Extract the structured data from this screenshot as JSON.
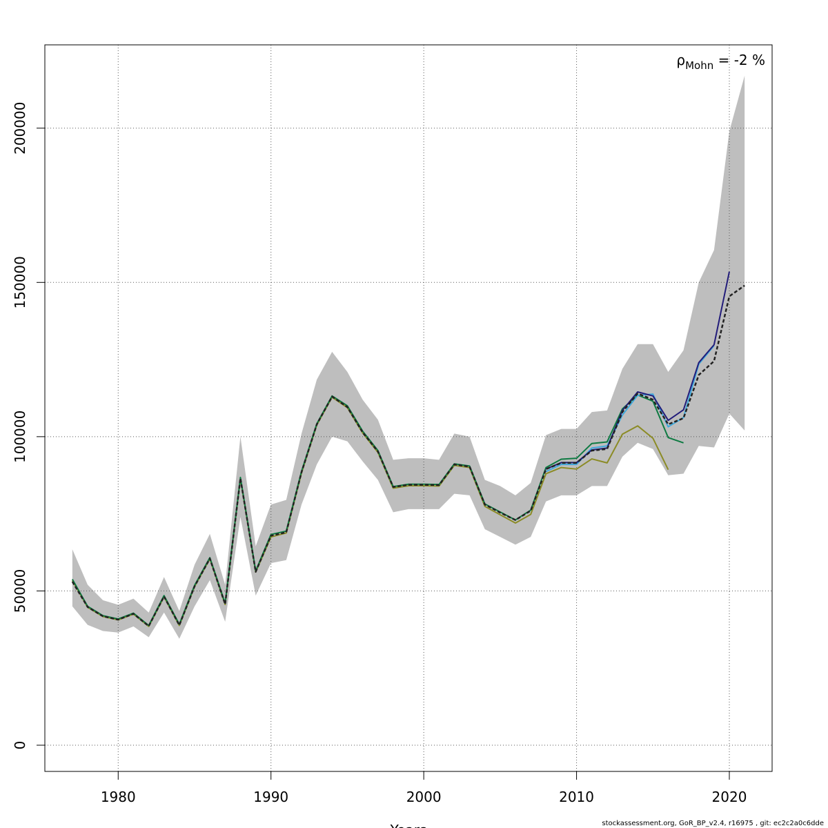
{
  "chart_data": {
    "type": "line",
    "title": "",
    "xlabel": "Years",
    "ylabel": "",
    "xlim": [
      1975.2,
      2022.8
    ],
    "ylim": [
      -8500,
      227000
    ],
    "xticks": [
      1980,
      1990,
      2000,
      2010,
      2020
    ],
    "yticks": [
      0,
      50000,
      100000,
      150000,
      200000
    ],
    "grid": true,
    "annotation": {
      "symbol": "ρ",
      "subscript": "Mohn",
      "text": " = -2 %"
    },
    "colors": {
      "band": "#bebebe",
      "grid": "#555555",
      "base": "#222222",
      "peel1": "#221c7a",
      "peel2": "#3fa9dc",
      "peel3": "#0e7a42",
      "peel4": "#8b8b25",
      "peel5": "#1a6b2a"
    },
    "band": {
      "x": [
        1977,
        1978,
        1979,
        1980,
        1981,
        1982,
        1983,
        1984,
        1985,
        1986,
        1987,
        1988,
        1989,
        1990,
        1991,
        1992,
        1993,
        1994,
        1995,
        1996,
        1997,
        1998,
        1999,
        2000,
        2001,
        2002,
        2003,
        2004,
        2005,
        2006,
        2007,
        2008,
        2009,
        2010,
        2011,
        2012,
        2013,
        2014,
        2015,
        2016,
        2017,
        2018,
        2019,
        2020,
        2021
      ],
      "lower": [
        45000,
        39000,
        37000,
        36500,
        38500,
        35000,
        43000,
        34500,
        45000,
        53500,
        40000,
        74000,
        48500,
        59000,
        60000,
        78000,
        91000,
        100000,
        98500,
        92000,
        86000,
        75500,
        76500,
        76500,
        76500,
        81500,
        81000,
        70000,
        67500,
        65000,
        67500,
        79000,
        81000,
        81000,
        84000,
        84000,
        93500,
        98000,
        96000,
        87500,
        88000,
        97000,
        96500,
        107500,
        102000
      ],
      "upper": [
        63500,
        52000,
        47000,
        45500,
        47500,
        43000,
        54500,
        43500,
        58500,
        68500,
        52000,
        100000,
        64500,
        78000,
        79500,
        101000,
        118500,
        127500,
        121000,
        112000,
        105500,
        92500,
        93000,
        93000,
        92500,
        101000,
        100000,
        86000,
        84000,
        81000,
        85000,
        100500,
        102500,
        102500,
        108000,
        108500,
        122000,
        130000,
        130000,
        121000,
        128000,
        150000,
        160500,
        199000,
        217000
      ]
    },
    "series": [
      {
        "name": "",
        "style": "dashed",
        "x": [
          1977,
          1978,
          1979,
          1980,
          1981,
          1982,
          1983,
          1984,
          1985,
          1986,
          1987,
          1988,
          1989,
          1990,
          1991,
          1992,
          1993,
          1994,
          1995,
          1996,
          1997,
          1998,
          1999,
          2000,
          2001,
          2002,
          2003,
          2004,
          2005,
          2006,
          2007,
          2008,
          2009,
          2010,
          2011,
          2012,
          2013,
          2014,
          2015,
          2016,
          2017,
          2018,
          2019,
          2020,
          2021
        ],
        "values": [
          53000,
          44800,
          41800,
          40700,
          42600,
          38600,
          48200,
          38900,
          51500,
          60500,
          45700,
          86500,
          56200,
          67900,
          69000,
          88500,
          104000,
          113000,
          109600,
          101400,
          95200,
          83700,
          84400,
          84400,
          84300,
          91000,
          90300,
          78000,
          75400,
          73000,
          76000,
          89500,
          91500,
          91500,
          95500,
          96000,
          108000,
          114000,
          112000,
          104000,
          106000,
          120000,
          124500,
          145500,
          149000
        ]
      },
      {
        "name": "",
        "style": "solid",
        "x": [
          2008,
          2009,
          2010,
          2011,
          2012,
          2013,
          2014,
          2015,
          2016,
          2017,
          2018,
          2019,
          2020
        ],
        "values": [
          89500,
          91600,
          91600,
          95700,
          96300,
          108500,
          114500,
          113200,
          105300,
          108700,
          124000,
          129800,
          153500
        ]
      },
      {
        "name": "",
        "style": "solid",
        "x": [
          2008,
          2009,
          2010,
          2011,
          2012,
          2013,
          2014,
          2015,
          2016,
          2017,
          2018,
          2019
        ],
        "values": [
          88700,
          91000,
          91000,
          96300,
          97000,
          107000,
          113400,
          113800,
          103200,
          106200,
          123500,
          129500
        ]
      },
      {
        "name": "",
        "style": "solid",
        "x": [
          1977,
          1978,
          1979,
          1980,
          1981,
          1982,
          1983,
          1984,
          1985,
          1986,
          1987,
          1988,
          1989,
          1990,
          1991,
          1992,
          1993,
          1994,
          1995,
          1996,
          1997,
          1998,
          1999,
          2000,
          2001,
          2002,
          2003,
          2004,
          2005,
          2006,
          2007,
          2008,
          2009,
          2010,
          2011,
          2012,
          2013,
          2014,
          2015,
          2016,
          2017
        ],
        "values": [
          53800,
          45000,
          42000,
          40900,
          42800,
          38800,
          48500,
          39200,
          51800,
          60800,
          46000,
          86800,
          56500,
          68300,
          69400,
          88800,
          104200,
          113200,
          110000,
          101800,
          95500,
          83800,
          84600,
          84600,
          84500,
          91200,
          90500,
          78200,
          75600,
          73000,
          76200,
          90000,
          92700,
          93000,
          97800,
          98300,
          109000,
          113500,
          111500,
          99700,
          98000
        ]
      },
      {
        "name": "",
        "style": "solid",
        "x": [
          1977,
          1978,
          1979,
          1980,
          1981,
          1982,
          1983,
          1984,
          1985,
          1986,
          1987,
          1988,
          1989,
          1990,
          1991,
          1992,
          1993,
          1994,
          1995,
          1996,
          1997,
          1998,
          1999,
          2000,
          2001,
          2002,
          2003,
          2004,
          2005,
          2006,
          2007,
          2008,
          2009,
          2010,
          2011,
          2012,
          2013,
          2014,
          2015,
          2016
        ],
        "values": [
          53400,
          44700,
          41700,
          40600,
          42500,
          38500,
          48100,
          38800,
          51400,
          60400,
          45600,
          86400,
          56100,
          67500,
          68800,
          88200,
          103800,
          112800,
          109400,
          101200,
          94900,
          83300,
          84100,
          84100,
          84000,
          90700,
          90000,
          77400,
          74700,
          72000,
          74800,
          88000,
          90000,
          89500,
          92800,
          91500,
          100800,
          103500,
          99500,
          89300
        ]
      }
    ]
  },
  "footer": "stockassessment.org, GoR_BP_v2.4, r16975 , git: ec2c2a0c6dde"
}
